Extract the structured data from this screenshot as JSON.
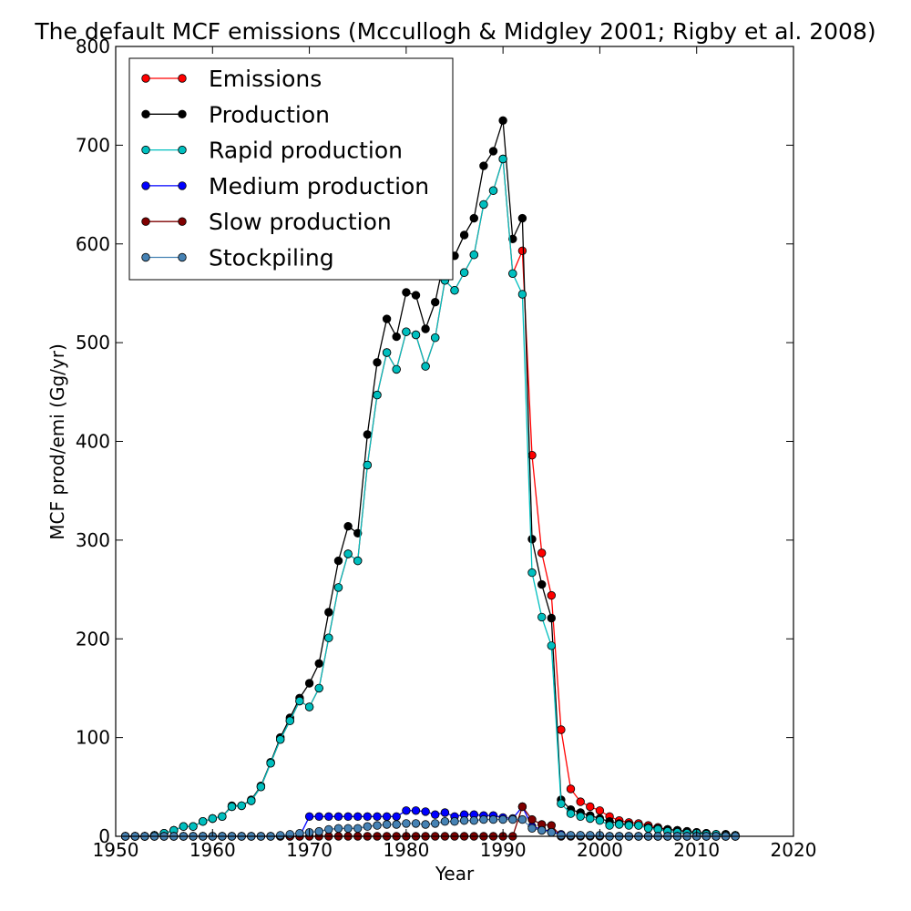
{
  "chart_data": {
    "type": "line",
    "title": "The default MCF emissions (Mccullogh & Midgley 2001; Rigby et al. 2008)",
    "xlabel": "Year",
    "ylabel": "MCF prod/emi (Gg/yr)",
    "xlim": [
      1950,
      2020
    ],
    "ylim": [
      0,
      800
    ],
    "xticks": [
      1950,
      1960,
      1970,
      1980,
      1990,
      2000,
      2010,
      2020
    ],
    "yticks": [
      0,
      100,
      200,
      300,
      400,
      500,
      600,
      700,
      800
    ],
    "grid": false,
    "legend_position": "top-left",
    "x": [
      1951,
      1952,
      1953,
      1954,
      1955,
      1956,
      1957,
      1958,
      1959,
      1960,
      1961,
      1962,
      1963,
      1964,
      1965,
      1966,
      1967,
      1968,
      1969,
      1970,
      1971,
      1972,
      1973,
      1974,
      1975,
      1976,
      1977,
      1978,
      1979,
      1980,
      1981,
      1982,
      1983,
      1984,
      1985,
      1986,
      1987,
      1988,
      1989,
      1990,
      1991,
      1992,
      1993,
      1994,
      1995,
      1996,
      1997,
      1998,
      1999,
      2000,
      2001,
      2002,
      2003,
      2004,
      2005,
      2006,
      2007,
      2008,
      2009,
      2010,
      2011,
      2012,
      2013,
      2014
    ],
    "series": [
      {
        "name": "Emissions",
        "color": "#ff0000",
        "values": [
          0,
          0,
          0,
          1,
          3,
          6,
          10,
          10,
          15,
          18,
          20,
          30,
          31,
          36,
          50,
          74,
          98,
          117,
          137,
          131,
          150,
          201,
          252,
          286,
          279,
          376,
          447,
          490,
          473,
          511,
          508,
          476,
          505,
          563,
          553,
          571,
          589,
          640,
          654,
          686,
          570,
          593,
          386,
          287,
          244,
          108,
          48,
          35,
          30,
          26,
          20,
          16,
          14,
          13,
          11,
          9,
          7,
          6,
          5,
          4,
          3,
          2,
          2,
          1
        ]
      },
      {
        "name": "Production",
        "color": "#000000",
        "values": [
          0,
          0,
          0,
          1,
          3,
          6,
          10,
          10,
          15,
          18,
          20,
          31,
          31,
          37,
          51,
          75,
          100,
          120,
          140,
          155,
          175,
          227,
          279,
          314,
          307,
          407,
          480,
          524,
          506,
          551,
          548,
          514,
          541,
          588,
          588,
          609,
          626,
          679,
          694,
          725,
          605,
          626,
          301,
          255,
          221,
          37,
          27,
          24,
          21,
          18,
          15,
          13,
          12,
          11,
          9,
          8,
          7,
          6,
          5,
          4,
          3,
          2,
          2,
          1
        ]
      },
      {
        "name": "Rapid production",
        "color": "#00bfbf",
        "values": [
          0,
          0,
          0,
          1,
          3,
          6,
          10,
          10,
          15,
          18,
          20,
          30,
          31,
          36,
          50,
          74,
          98,
          117,
          137,
          131,
          150,
          201,
          252,
          286,
          279,
          376,
          447,
          490,
          473,
          511,
          508,
          476,
          505,
          563,
          553,
          571,
          589,
          640,
          654,
          686,
          570,
          549,
          267,
          222,
          193,
          33,
          23,
          20,
          18,
          16,
          11,
          12,
          11,
          11,
          8,
          7,
          5,
          4,
          3,
          3,
          2,
          2,
          1,
          1
        ]
      },
      {
        "name": "Medium production",
        "color": "#0000ff",
        "values": [
          0,
          0,
          0,
          0,
          0,
          0,
          0,
          0,
          0,
          0,
          0,
          0,
          0,
          0,
          0,
          0,
          0,
          0,
          0,
          20,
          20,
          20,
          20,
          20,
          20,
          20,
          20,
          20,
          20,
          26,
          26,
          25,
          22,
          24,
          20,
          22,
          22,
          21,
          21,
          19,
          18,
          30,
          10,
          7,
          5,
          2,
          1,
          1,
          1,
          1,
          0,
          0,
          0,
          0,
          0,
          0,
          0,
          0,
          0,
          0,
          0,
          0,
          0,
          0
        ]
      },
      {
        "name": "Slow production",
        "color": "#7f0000",
        "values": [
          0,
          0,
          0,
          0,
          0,
          0,
          0,
          0,
          0,
          0,
          0,
          0,
          0,
          0,
          0,
          0,
          0,
          0,
          0,
          0,
          0,
          0,
          0,
          0,
          0,
          0,
          0,
          0,
          0,
          0,
          0,
          0,
          0,
          0,
          0,
          0,
          0,
          0,
          0,
          0,
          0,
          30,
          17,
          12,
          11,
          0,
          0,
          0,
          0,
          0,
          0,
          0,
          0,
          0,
          0,
          0,
          0,
          0,
          0,
          0,
          0,
          0,
          0,
          0
        ]
      },
      {
        "name": "Stockpiling",
        "color": "#4682b4",
        "values": [
          0,
          0,
          0,
          0,
          0,
          0,
          0,
          0,
          0,
          0,
          0,
          0,
          0,
          0,
          0,
          0,
          1,
          2,
          3,
          4,
          5,
          7,
          8,
          8,
          8,
          10,
          11,
          12,
          12,
          13,
          13,
          12,
          13,
          15,
          15,
          16,
          16,
          17,
          17,
          17,
          17,
          17,
          8,
          6,
          4,
          1,
          1,
          1,
          1,
          1,
          0,
          0,
          0,
          0,
          0,
          0,
          0,
          0,
          0,
          0,
          0,
          0,
          0,
          0
        ]
      }
    ]
  }
}
